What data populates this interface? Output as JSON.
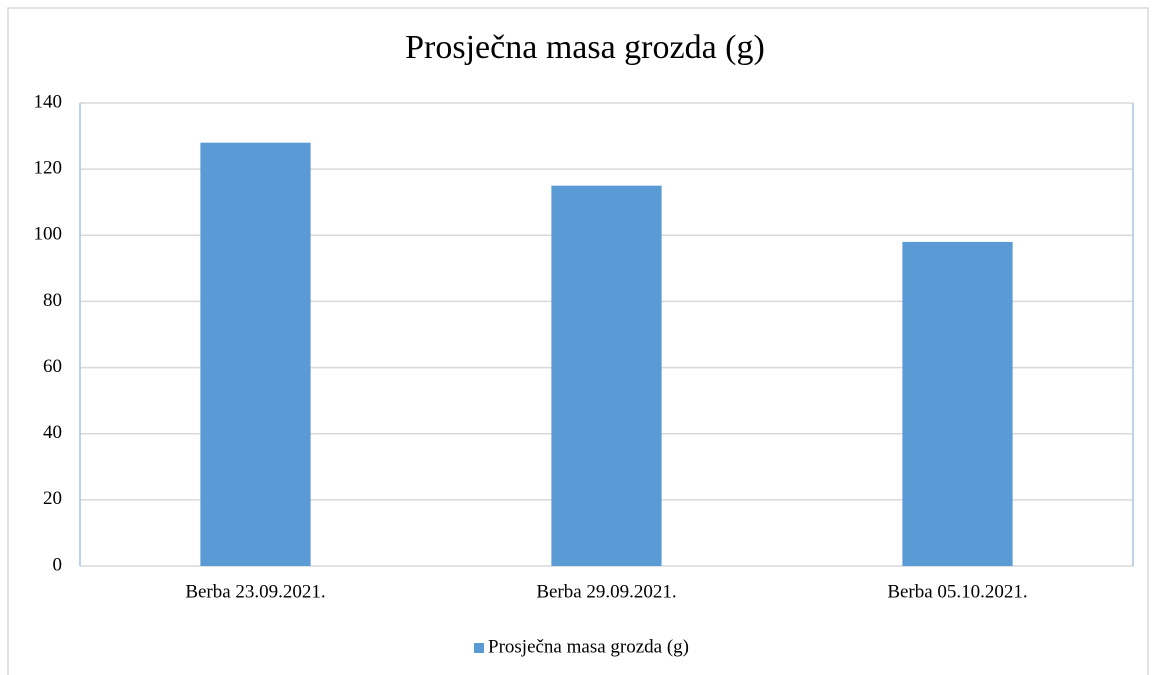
{
  "chart_data": {
    "type": "bar",
    "title": "Prosječna masa grozda (g)",
    "categories": [
      "Berba 23.09.2021.",
      "Berba 29.09.2021.",
      "Berba 05.10.2021."
    ],
    "series": [
      {
        "name": "Prosječna masa grozda (g)",
        "color": "#5b9bd5",
        "values": [
          128,
          115,
          98
        ]
      }
    ],
    "ylim": [
      0,
      140
    ],
    "yticks": [
      0,
      20,
      40,
      60,
      80,
      100,
      120,
      140
    ],
    "grid": true,
    "legend": "bottom"
  }
}
